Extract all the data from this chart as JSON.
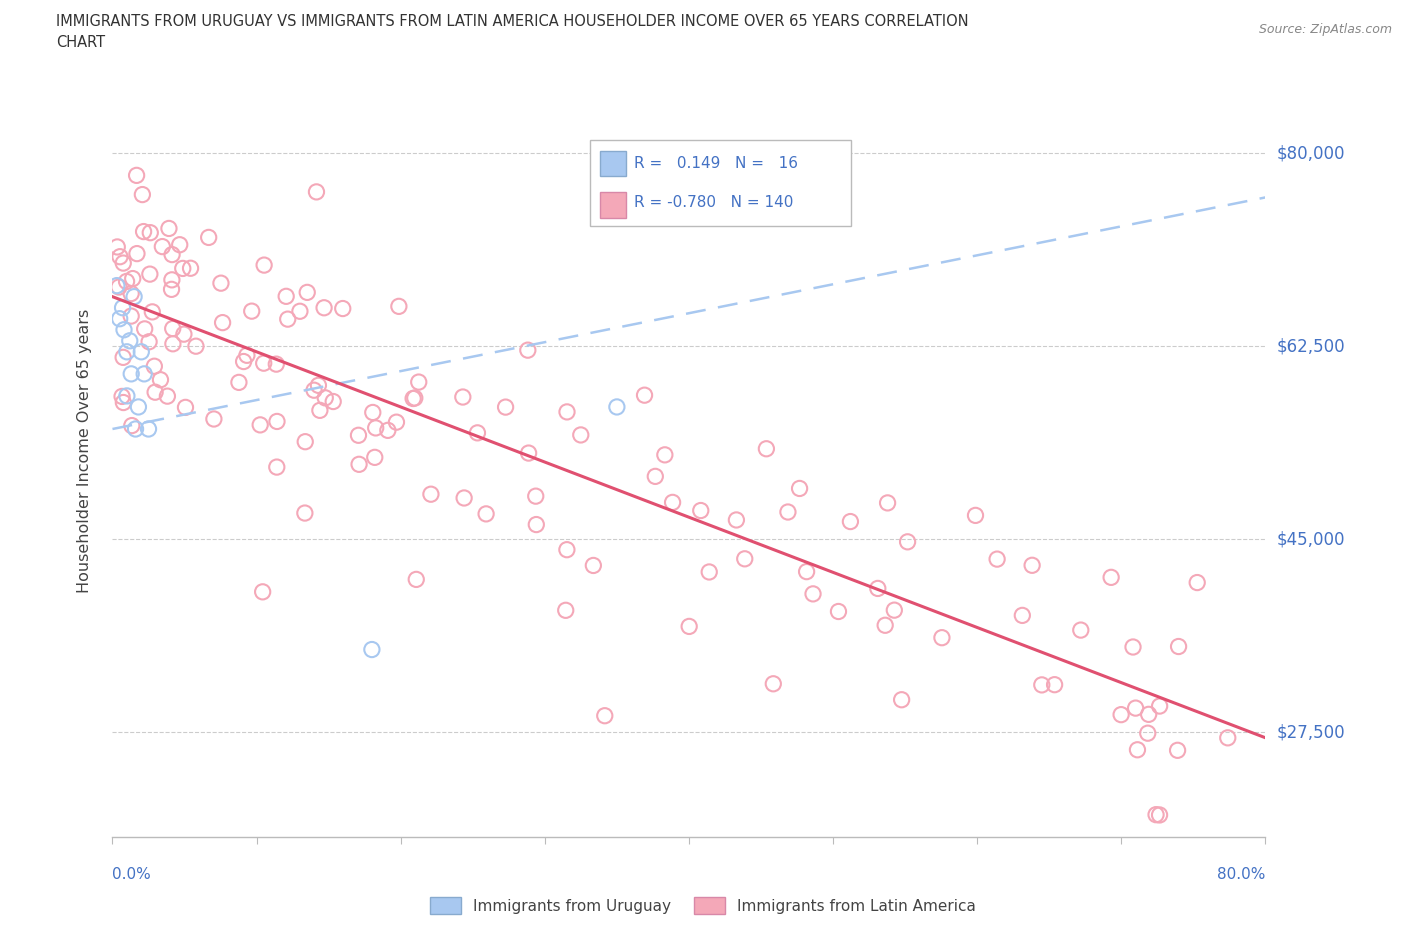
{
  "title_line1": "IMMIGRANTS FROM URUGUAY VS IMMIGRANTS FROM LATIN AMERICA HOUSEHOLDER INCOME OVER 65 YEARS CORRELATION",
  "title_line2": "CHART",
  "source": "Source: ZipAtlas.com",
  "ylabel": "Householder Income Over 65 years",
  "xlim": [
    0.0,
    0.8
  ],
  "ylim": [
    18000,
    88000
  ],
  "yticks": [
    27500,
    45000,
    62500,
    80000
  ],
  "ytick_labels": [
    "$27,500",
    "$45,000",
    "$62,500",
    "$80,000"
  ],
  "color_uruguay": "#A8C8F0",
  "color_latin": "#F4A8B8",
  "trendline_uruguay_color": "#A8C8F0",
  "trendline_latin_color": "#E05070",
  "tick_color": "#4472C4",
  "legend_text_color": "#4472C4",
  "r_uruguay": 0.149,
  "n_uruguay": 16,
  "r_latin": -0.78,
  "n_latin": 140
}
